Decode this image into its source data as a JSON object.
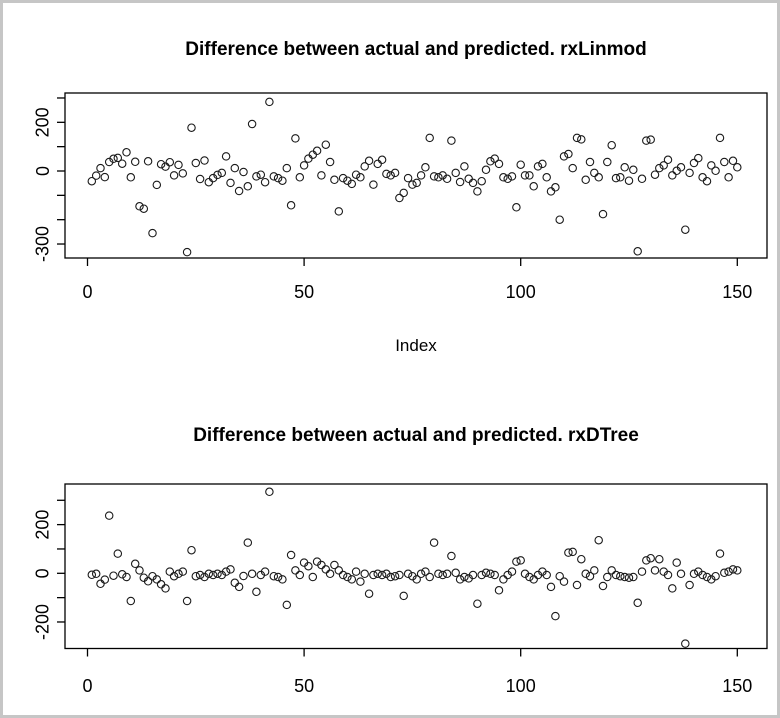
{
  "figure": {
    "background": "#ffffff",
    "frame_border_color": "#c6c6c6",
    "plot_box_color": "#000000",
    "point_color": "#1a1a1a"
  },
  "chart_data": [
    {
      "type": "scatter",
      "title": "Difference between actual and predicted. rxLinmod",
      "xlabel": "Index",
      "ylabel": "",
      "marker": "open-circle",
      "n_points": 150,
      "x_is_index_starting_at": 1,
      "xlim": [
        0,
        155
      ],
      "ylim": [
        -350,
        320
      ],
      "xticks": [
        0,
        50,
        100,
        150
      ],
      "yticks": [
        300,
        200,
        100,
        0,
        -100,
        -200,
        -300
      ],
      "ytick_labels": [
        "",
        "200",
        "",
        "0",
        "",
        "",
        "-300"
      ],
      "grid": false,
      "legend": "none",
      "values": [
        -42,
        -19,
        12,
        -25,
        37,
        50,
        54,
        30,
        77,
        -26,
        38,
        -145,
        -155,
        40,
        -255,
        -57,
        28,
        18,
        36,
        -18,
        25,
        -10,
        -333,
        178,
        33,
        -33,
        43,
        -46,
        -29,
        -16,
        -8,
        60,
        -49,
        12,
        -82,
        -4,
        -63,
        193,
        -22,
        -15,
        -46,
        284,
        -22,
        -29,
        -40,
        12,
        -141,
        134,
        -26,
        23,
        51,
        67,
        83,
        -18,
        108,
        37,
        -36,
        -166,
        -29,
        -40,
        -53,
        -15,
        -26,
        19,
        42,
        -56,
        29,
        46,
        -12,
        -18,
        -8,
        -111,
        -90,
        -29,
        -56,
        -49,
        -18,
        15,
        136,
        -22,
        -26,
        -18,
        -32,
        125,
        -8,
        -45,
        19,
        -32,
        -49,
        -84,
        -42,
        5,
        40,
        51,
        29,
        -26,
        -32,
        -22,
        -149,
        26,
        -18,
        -18,
        -63,
        19,
        29,
        -26,
        -84,
        -67,
        -200,
        60,
        70,
        12,
        136,
        130,
        -36,
        37,
        -8,
        -26,
        -177,
        37,
        106,
        -29,
        -26,
        15,
        -40,
        5,
        -330,
        -32,
        125,
        129,
        -15,
        12,
        23,
        46,
        -18,
        1,
        15,
        -241,
        -8,
        33,
        53,
        -26,
        -42,
        23,
        1,
        136,
        37,
        -26,
        42,
        15
      ]
    },
    {
      "type": "scatter",
      "title": "Difference between actual and predicted. rxDTree",
      "xlabel": "",
      "ylabel": "",
      "marker": "open-circle",
      "n_points": 150,
      "x_is_index_starting_at": 1,
      "xlim": [
        0,
        155
      ],
      "ylim": [
        -310,
        365
      ],
      "xticks": [
        0,
        50,
        100,
        150
      ],
      "yticks": [
        300,
        200,
        100,
        0,
        -100,
        -200
      ],
      "ytick_labels": [
        "",
        "200",
        "",
        "0",
        "",
        "-200"
      ],
      "grid": false,
      "legend": "none",
      "values": [
        -6,
        -2,
        -43,
        -26,
        237,
        -10,
        81,
        -4,
        -15,
        -114,
        39,
        12,
        -18,
        -33,
        -12,
        -25,
        -45,
        -62,
        7,
        -12,
        -2,
        7,
        -114,
        95,
        -12,
        -7,
        -15,
        -2,
        -7,
        -2,
        -7,
        7,
        16,
        -39,
        -56,
        -11,
        126,
        -2,
        -76,
        -7,
        7,
        335,
        -12,
        -15,
        -25,
        -130,
        75,
        12,
        -7,
        44,
        29,
        -15,
        48,
        34,
        16,
        -2,
        34,
        12,
        -7,
        -15,
        -25,
        7,
        -34,
        -2,
        -84,
        -7,
        -2,
        -7,
        -2,
        -15,
        -12,
        -7,
        -93,
        -2,
        -12,
        -25,
        -2,
        7,
        -15,
        126,
        -2,
        -7,
        -2,
        71,
        2,
        -25,
        -15,
        -21,
        -7,
        -125,
        -7,
        2,
        -2,
        -7,
        -70,
        -25,
        -7,
        7,
        48,
        53,
        -2,
        -15,
        -25,
        -7,
        7,
        -7,
        -56,
        -176,
        -12,
        -34,
        85,
        88,
        -48,
        58,
        -2,
        -12,
        12,
        136,
        -52,
        -15,
        12,
        -7,
        -12,
        -15,
        -18,
        -15,
        -121,
        7,
        53,
        62,
        12,
        58,
        7,
        -7,
        -62,
        44,
        -2,
        -289,
        -48,
        -2,
        7,
        -7,
        -15,
        -25,
        -12,
        81,
        2,
        7,
        16,
        12
      ]
    }
  ]
}
